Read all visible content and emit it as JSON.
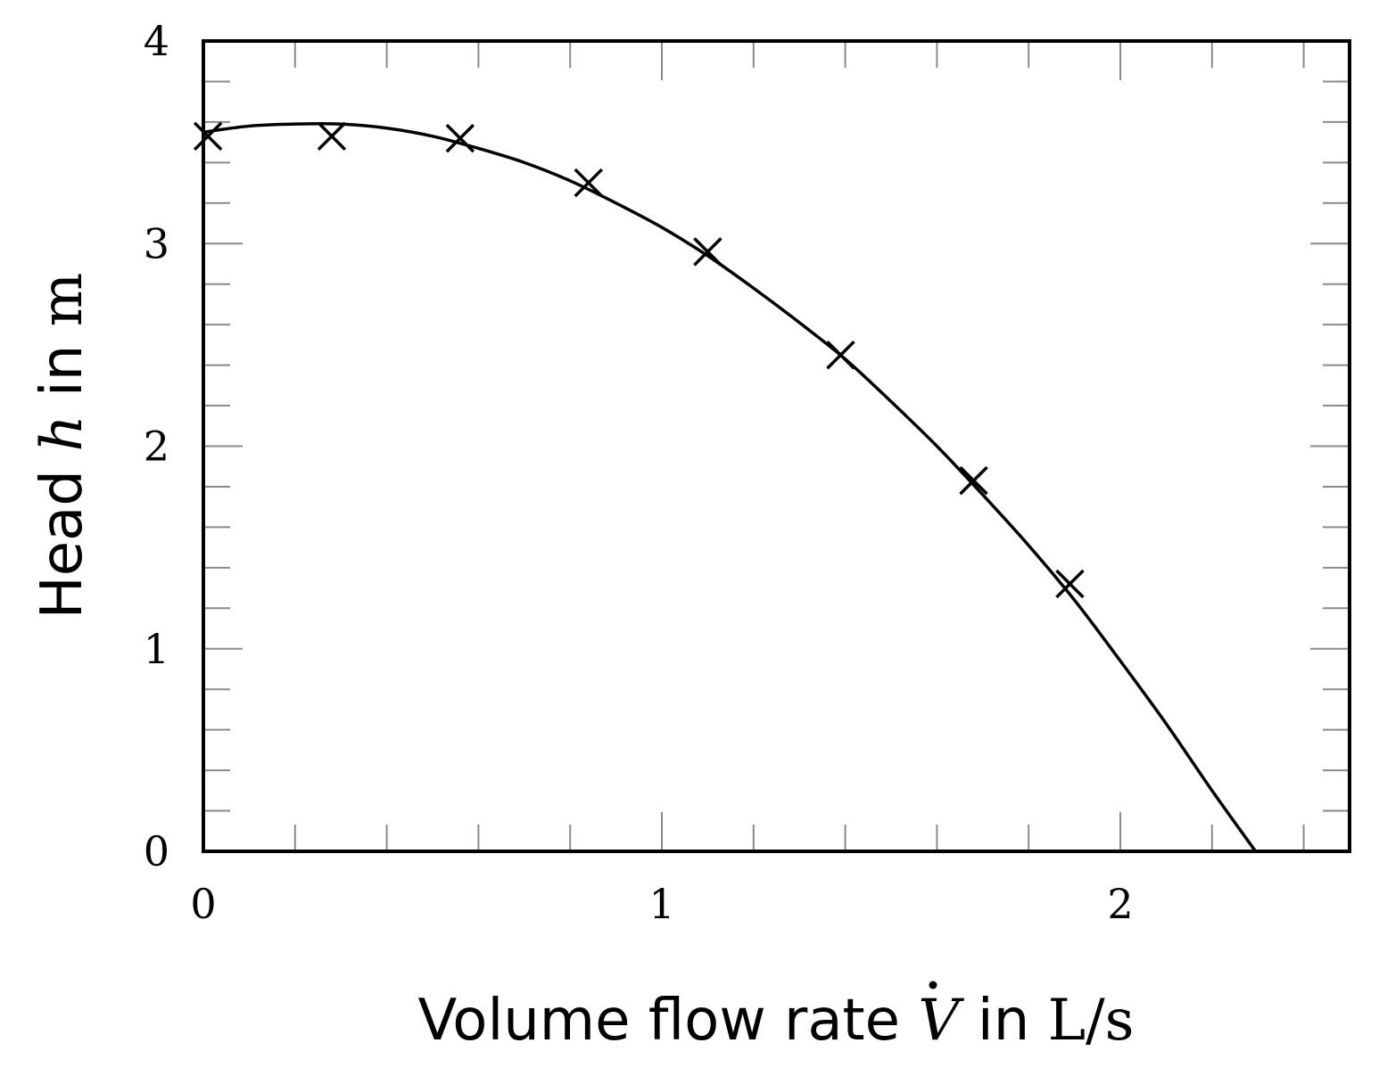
{
  "chart_data": {
    "type": "scatter",
    "xlabel": {
      "prefix": "Volume flow rate ",
      "symbol": "V",
      "middle": " in ",
      "unit": "L/s"
    },
    "ylabel": {
      "prefix": "Head ",
      "symbol": "h",
      "middle": " in ",
      "unit": "m"
    },
    "xlim": [
      0,
      2.5
    ],
    "ylim": [
      0,
      4
    ],
    "x_ticks": [
      0,
      1,
      2
    ],
    "y_ticks": [
      0,
      1,
      2,
      3,
      4
    ],
    "x_tick_labels": [
      "0",
      "1",
      "2"
    ],
    "y_tick_labels": [
      "0",
      "1",
      "2",
      "3",
      "4"
    ],
    "x_minor_step": 0.2,
    "y_minor_step": 0.2,
    "grid": false,
    "legend": "none",
    "marker": "cross",
    "line_color": "#000000",
    "series": [
      {
        "kind": "markers",
        "x": [
          0.01,
          0.28,
          0.56,
          0.84,
          1.1,
          1.39,
          1.68,
          1.89
        ],
        "y": [
          3.53,
          3.53,
          3.52,
          3.3,
          2.96,
          2.45,
          1.83,
          1.32
        ]
      },
      {
        "kind": "fit-line",
        "x": [
          0.0,
          0.1,
          0.2,
          0.3,
          0.4,
          0.5,
          0.6,
          0.7,
          0.8,
          0.9,
          1.0,
          1.1,
          1.2,
          1.3,
          1.4,
          1.5,
          1.6,
          1.7,
          1.8,
          1.9,
          2.0,
          2.1,
          2.2,
          2.295
        ],
        "y": [
          3.55,
          3.58,
          3.59,
          3.59,
          3.57,
          3.53,
          3.47,
          3.4,
          3.31,
          3.2,
          3.08,
          2.94,
          2.78,
          2.61,
          2.43,
          2.22,
          2.0,
          1.76,
          1.51,
          1.24,
          0.94,
          0.63,
          0.3,
          0.0
        ]
      }
    ]
  }
}
